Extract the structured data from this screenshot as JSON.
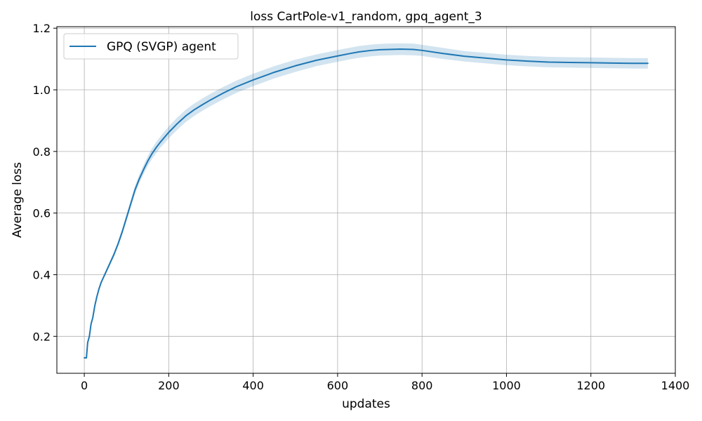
{
  "chart_data": {
    "type": "line",
    "title": "loss CartPole-v1_random, gpq_agent_3",
    "xlabel": "updates",
    "ylabel": "Average loss",
    "xlim": [
      -65,
      1400
    ],
    "ylim": [
      0.08,
      1.205
    ],
    "xticks": [
      0,
      200,
      400,
      600,
      800,
      1000,
      1200,
      1400
    ],
    "xtick_labels": [
      "0",
      "200",
      "400",
      "600",
      "800",
      "1000",
      "1200",
      "1400"
    ],
    "yticks": [
      0.2,
      0.4,
      0.6,
      0.8,
      1.0,
      1.2
    ],
    "ytick_labels": [
      "0.2",
      "0.4",
      "0.6",
      "0.8",
      "1.0",
      "1.2"
    ],
    "grid": true,
    "legend_position": "top-left",
    "series": [
      {
        "name": "GPQ (SVGP) agent",
        "color": "#1f77b4",
        "band_color": "#1f77b4",
        "x": [
          0,
          5,
          8,
          12,
          16,
          20,
          25,
          30,
          35,
          40,
          45,
          50,
          60,
          70,
          80,
          90,
          100,
          110,
          120,
          130,
          140,
          150,
          160,
          170,
          180,
          190,
          200,
          220,
          240,
          260,
          280,
          300,
          330,
          360,
          400,
          450,
          500,
          550,
          600,
          630,
          650,
          680,
          700,
          720,
          750,
          780,
          800,
          850,
          900,
          950,
          1000,
          1050,
          1100,
          1150,
          1200,
          1250,
          1300,
          1335
        ],
        "y": [
          0.13,
          0.13,
          0.18,
          0.2,
          0.24,
          0.26,
          0.3,
          0.33,
          0.355,
          0.375,
          0.39,
          0.405,
          0.435,
          0.465,
          0.5,
          0.54,
          0.585,
          0.63,
          0.675,
          0.71,
          0.74,
          0.768,
          0.792,
          0.812,
          0.83,
          0.846,
          0.862,
          0.89,
          0.915,
          0.935,
          0.952,
          0.968,
          0.99,
          1.01,
          1.032,
          1.057,
          1.078,
          1.096,
          1.11,
          1.118,
          1.123,
          1.128,
          1.13,
          1.131,
          1.132,
          1.131,
          1.128,
          1.118,
          1.109,
          1.103,
          1.097,
          1.093,
          1.09,
          1.089,
          1.088,
          1.087,
          1.086,
          1.086
        ],
        "band_halfwidth": [
          0.0,
          0.0,
          0.0,
          0.0,
          0.002,
          0.003,
          0.003,
          0.004,
          0.004,
          0.005,
          0.005,
          0.006,
          0.007,
          0.008,
          0.009,
          0.01,
          0.011,
          0.012,
          0.013,
          0.014,
          0.015,
          0.016,
          0.017,
          0.018,
          0.018,
          0.019,
          0.019,
          0.02,
          0.02,
          0.02,
          0.02,
          0.02,
          0.02,
          0.02,
          0.02,
          0.02,
          0.02,
          0.019,
          0.019,
          0.019,
          0.019,
          0.019,
          0.019,
          0.019,
          0.019,
          0.019,
          0.018,
          0.018,
          0.017,
          0.017,
          0.017,
          0.017,
          0.017,
          0.017,
          0.017,
          0.017,
          0.017,
          0.017
        ]
      }
    ]
  }
}
